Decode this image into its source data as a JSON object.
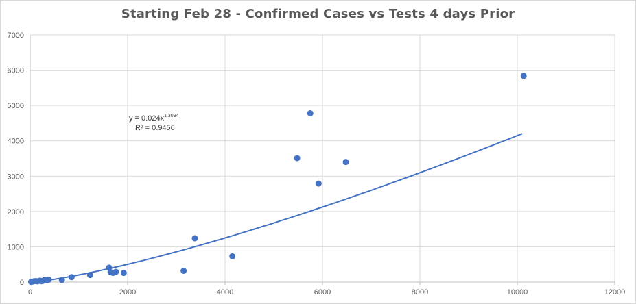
{
  "chart_data": {
    "type": "scatter",
    "title": "Starting  Feb 28 - Confirmed Cases vs Tests 4 days Prior",
    "xlabel": "",
    "ylabel": "",
    "xlim": [
      0,
      12000
    ],
    "ylim": [
      0,
      7000
    ],
    "x_ticks": [
      "0",
      "2000",
      "4000",
      "6000",
      "8000",
      "10000",
      "12000"
    ],
    "y_ticks": [
      "0",
      "1000",
      "2000",
      "3000",
      "4000",
      "5000",
      "6000",
      "7000"
    ],
    "grid": true,
    "marker_color": "#4472c4",
    "trendline_color": "#4472c4",
    "trendline": {
      "type": "power",
      "a": 0.024,
      "b": 1.3094,
      "x_range": [
        0,
        10100
      ],
      "equation_prefix": "y = 0.024x",
      "equation_exponent": "1.3094",
      "r_squared_label": "R² = 0.9456"
    },
    "points": [
      {
        "x": 20,
        "y": 5
      },
      {
        "x": 50,
        "y": 15
      },
      {
        "x": 80,
        "y": 25
      },
      {
        "x": 120,
        "y": 30
      },
      {
        "x": 150,
        "y": 20
      },
      {
        "x": 200,
        "y": 40
      },
      {
        "x": 230,
        "y": 25
      },
      {
        "x": 260,
        "y": 35
      },
      {
        "x": 290,
        "y": 60
      },
      {
        "x": 340,
        "y": 50
      },
      {
        "x": 380,
        "y": 70
      },
      {
        "x": 650,
        "y": 60
      },
      {
        "x": 850,
        "y": 140
      },
      {
        "x": 1230,
        "y": 200
      },
      {
        "x": 1620,
        "y": 410
      },
      {
        "x": 1650,
        "y": 280
      },
      {
        "x": 1700,
        "y": 260
      },
      {
        "x": 1760,
        "y": 290
      },
      {
        "x": 1920,
        "y": 260
      },
      {
        "x": 3150,
        "y": 320
      },
      {
        "x": 3380,
        "y": 1240
      },
      {
        "x": 4150,
        "y": 730
      },
      {
        "x": 5480,
        "y": 3510
      },
      {
        "x": 5750,
        "y": 4780
      },
      {
        "x": 5920,
        "y": 2790
      },
      {
        "x": 6480,
        "y": 3400
      },
      {
        "x": 10130,
        "y": 5840
      }
    ]
  }
}
